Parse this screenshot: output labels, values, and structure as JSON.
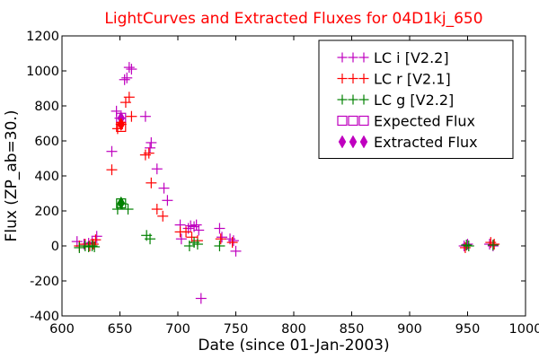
{
  "chart_data": {
    "type": "scatter",
    "title": "LightCurves and Extracted Fluxes for 04D1kj_650",
    "title_color": "#ff0000",
    "xlabel": "Date (since 01-Jan-2003)",
    "ylabel": "Flux (ZP_ab=30.)",
    "xlim": [
      600,
      1000
    ],
    "ylim": [
      -400,
      1200
    ],
    "xticks": [
      600,
      650,
      700,
      750,
      800,
      850,
      900,
      950,
      1000
    ],
    "yticks": [
      -400,
      -200,
      0,
      200,
      400,
      600,
      800,
      1000,
      1200
    ],
    "grid": false,
    "legend_position": "top-right",
    "series": [
      {
        "name": "LC i [V2.2]",
        "marker": "plus",
        "color": "#bf00bf",
        "points": [
          [
            613,
            25
          ],
          [
            619,
            10
          ],
          [
            623,
            15
          ],
          [
            626,
            20
          ],
          [
            630,
            55
          ],
          [
            643,
            540
          ],
          [
            647,
            770
          ],
          [
            650,
            730
          ],
          [
            654,
            950
          ],
          [
            656,
            960
          ],
          [
            658,
            1020
          ],
          [
            660,
            1010
          ],
          [
            672,
            740
          ],
          [
            676,
            560
          ],
          [
            677,
            590
          ],
          [
            682,
            440
          ],
          [
            688,
            330
          ],
          [
            691,
            260
          ],
          [
            702,
            120
          ],
          [
            703,
            40
          ],
          [
            709,
            100
          ],
          [
            711,
            115
          ],
          [
            714,
            110
          ],
          [
            716,
            120
          ],
          [
            718,
            90
          ],
          [
            720,
            -300
          ],
          [
            736,
            100
          ],
          [
            738,
            50
          ],
          [
            745,
            40
          ],
          [
            748,
            30
          ],
          [
            750,
            -30
          ],
          [
            947,
            0
          ],
          [
            950,
            10
          ],
          [
            969,
            10
          ],
          [
            972,
            0
          ]
        ]
      },
      {
        "name": "LC r [V2.1]",
        "marker": "plus",
        "color": "#ff0000",
        "points": [
          [
            615,
            0
          ],
          [
            620,
            10
          ],
          [
            624,
            0
          ],
          [
            627,
            10
          ],
          [
            629,
            35
          ],
          [
            643,
            435
          ],
          [
            648,
            670
          ],
          [
            651,
            695
          ],
          [
            655,
            820
          ],
          [
            658,
            850
          ],
          [
            660,
            740
          ],
          [
            672,
            520
          ],
          [
            675,
            530
          ],
          [
            677,
            360
          ],
          [
            682,
            210
          ],
          [
            687,
            170
          ],
          [
            702,
            80
          ],
          [
            707,
            80
          ],
          [
            712,
            50
          ],
          [
            717,
            30
          ],
          [
            737,
            40
          ],
          [
            747,
            20
          ],
          [
            948,
            -10
          ],
          [
            970,
            20
          ],
          [
            973,
            10
          ]
        ]
      },
      {
        "name": "LC g [V2.2]",
        "marker": "plus",
        "color": "#008000",
        "points": [
          [
            615,
            -10
          ],
          [
            620,
            0
          ],
          [
            623,
            -5
          ],
          [
            626,
            0
          ],
          [
            628,
            -5
          ],
          [
            648,
            210
          ],
          [
            652,
            240
          ],
          [
            657,
            210
          ],
          [
            673,
            60
          ],
          [
            676,
            40
          ],
          [
            710,
            0
          ],
          [
            714,
            20
          ],
          [
            717,
            10
          ],
          [
            736,
            0
          ],
          [
            949,
            5
          ],
          [
            951,
            0
          ],
          [
            972,
            5
          ]
        ]
      }
    ],
    "expected_flux": {
      "name": "Expected Flux",
      "marker": "square",
      "points": [
        {
          "x": 651,
          "y": 732,
          "color": "#bf00bf"
        },
        {
          "x": 651,
          "y": 680,
          "color": "#ff0000"
        },
        {
          "x": 651,
          "y": 243,
          "color": "#008000"
        }
      ]
    },
    "extracted_flux": {
      "name": "Extracted Flux",
      "marker": "diamond",
      "points": [
        {
          "x": 651,
          "y": 730,
          "color": "#bf00bf"
        },
        {
          "x": 651,
          "y": 695,
          "color": "#ff0000"
        },
        {
          "x": 651,
          "y": 245,
          "color": "#008000"
        }
      ]
    },
    "legend_entries": [
      {
        "label": "LC i [V2.2]",
        "marker": "plus",
        "color": "#bf00bf"
      },
      {
        "label": "LC r [V2.1]",
        "marker": "plus",
        "color": "#ff0000"
      },
      {
        "label": "LC g [V2.2]",
        "marker": "plus",
        "color": "#008000"
      },
      {
        "label": "Expected Flux",
        "marker": "square",
        "color": "#bf00bf"
      },
      {
        "label": "Extracted Flux",
        "marker": "diamond",
        "color": "#bf00bf"
      }
    ]
  }
}
